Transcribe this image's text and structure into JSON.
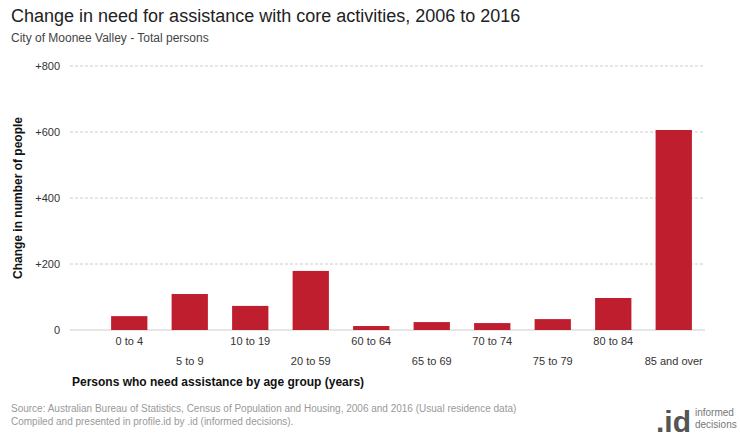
{
  "chart_data": {
    "type": "bar",
    "title": "Change in need for assistance with core activities, 2006 to 2016",
    "subtitle": "City of Moonee Valley - Total persons",
    "x_label": "Persons who need assistance by age group (years)",
    "y_label": "Change in number of people",
    "categories": [
      "0 to 4",
      "5 to 9",
      "10 to 19",
      "20 to 59",
      "60 to 64",
      "65 to 69",
      "70 to 74",
      "75 to 79",
      "80 to 84",
      "85 and over"
    ],
    "values": [
      42,
      109,
      73,
      179,
      12,
      24,
      21,
      33,
      97,
      606
    ],
    "color": "#be1e2d",
    "ylim": [
      0,
      800
    ],
    "yticks": [
      0,
      {
        "value": 200,
        "label": "+200"
      },
      {
        "value": 400,
        "label": "+400"
      },
      {
        "value": 600,
        "label": "+600"
      },
      {
        "value": 800,
        "label": "+800"
      }
    ],
    "grid": true,
    "source": "Source: Australian Bureau of Statistics, Census of Population and Housing, 2006 and 2016 (Usual residence data)",
    "credit": "Compiled and presented in profile.id by .id (informed decisions).",
    "logo": ".id",
    "logo_text": [
      "informed",
      "decisions"
    ]
  }
}
